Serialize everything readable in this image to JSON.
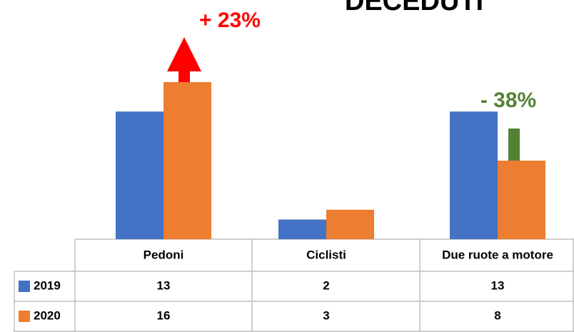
{
  "chart_data": {
    "type": "bar",
    "title": "DECEDUTI",
    "categories": [
      "Pedoni",
      "Ciclisti",
      "Due ruote a motore"
    ],
    "series": [
      {
        "name": "2019",
        "color": "#4472c4",
        "values": [
          13,
          2,
          13
        ]
      },
      {
        "name": "2020",
        "color": "#ed7d31",
        "values": [
          16,
          3,
          8
        ]
      }
    ],
    "ylim": [
      0,
      24
    ],
    "annotations": [
      {
        "text": "+ 23%",
        "color": "#ff0000"
      },
      {
        "text": "- 38%",
        "color": "#548235"
      }
    ]
  }
}
